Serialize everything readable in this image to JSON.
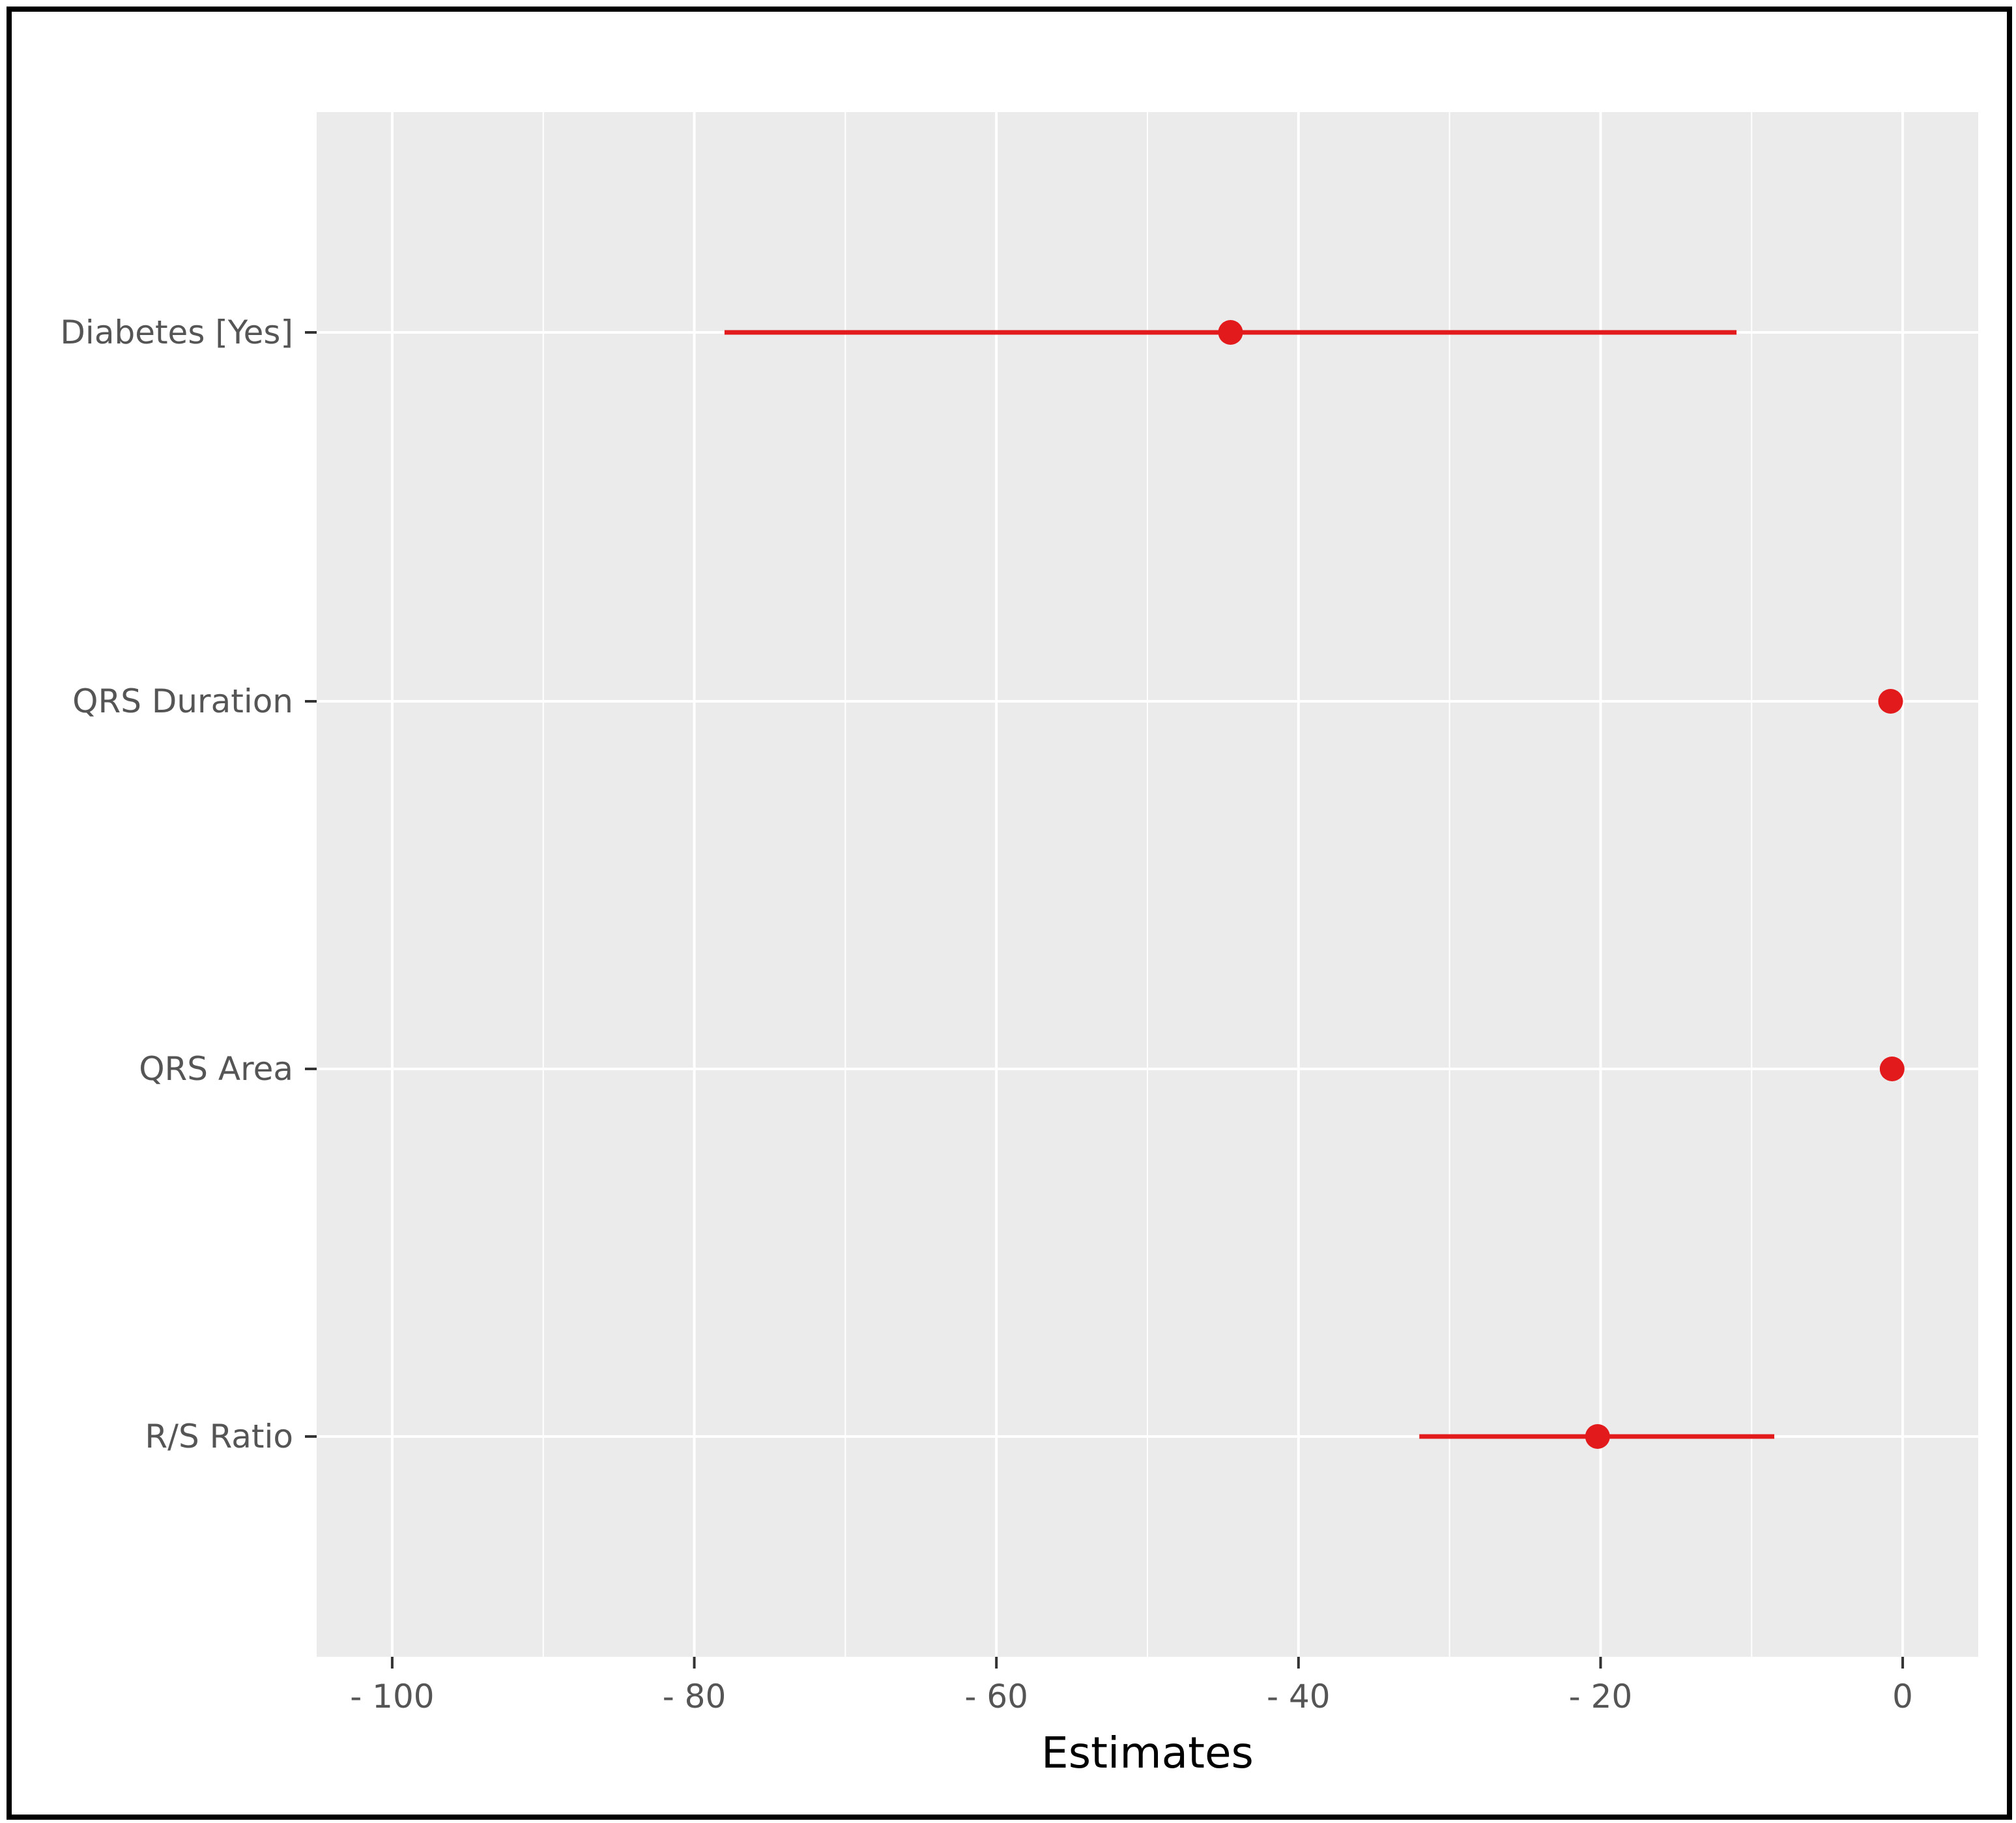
{
  "chart_data": {
    "type": "forest",
    "xlabel": "Estimates",
    "ylabel": "",
    "xlim": [
      -105,
      5
    ],
    "x_ticks": [
      -100,
      -80,
      -60,
      -40,
      -20,
      0
    ],
    "x_tick_labels": [
      "- 100",
      "- 80",
      "- 60",
      "- 40",
      "- 20",
      "0"
    ],
    "x_minor_ticks": [
      -90,
      -70,
      -50,
      -30,
      -10
    ],
    "grid": true,
    "colors": {
      "panel": "#ebebeb",
      "grid": "#ffffff",
      "marker": "#e31a1c"
    },
    "categories": [
      "Diabetes [Yes]",
      "QRS Duration",
      "QRS Area",
      "R/S Ratio"
    ],
    "series": [
      {
        "estimates": [
          -44.5,
          -0.8,
          -0.7,
          -20.2
        ],
        "ci_low": [
          -78.0,
          null,
          null,
          -32.0
        ],
        "ci_high": [
          -11.0,
          null,
          null,
          -8.5
        ]
      }
    ]
  }
}
